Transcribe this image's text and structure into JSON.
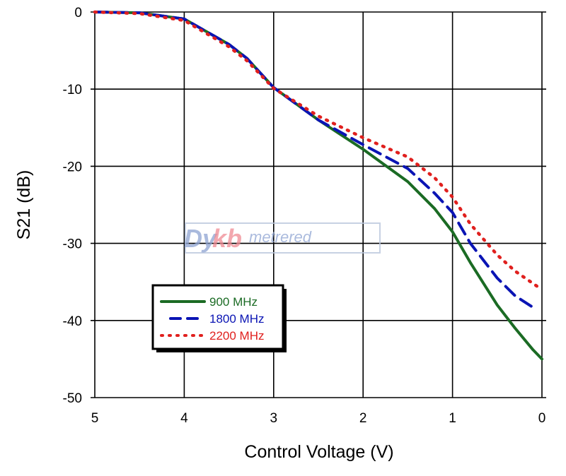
{
  "chart_data": {
    "type": "line",
    "title": "",
    "xlabel": "Control Voltage (V)",
    "ylabel": "S21 (dB)",
    "xlim": [
      5,
      0
    ],
    "ylim": [
      -50,
      0
    ],
    "x_ticks": [
      "5",
      "4",
      "3",
      "2",
      "1",
      "0"
    ],
    "y_ticks": [
      "0",
      "-10",
      "-20",
      "-30",
      "-40",
      "-50"
    ],
    "grid": true,
    "legend_position": "lower-left inside",
    "x": [
      5.0,
      4.5,
      4.0,
      3.5,
      3.3,
      3.0,
      2.5,
      2.0,
      1.5,
      1.2,
      1.0,
      0.8,
      0.5,
      0.3,
      0.1,
      0.0
    ],
    "series": [
      {
        "name": "900 MHz",
        "color": "#1b6b24",
        "style": "solid",
        "values": [
          0,
          -0.1,
          -0.9,
          -4.2,
          -6.0,
          -9.8,
          -14.0,
          -17.8,
          -22.0,
          -25.5,
          -28.5,
          -32.5,
          -38.0,
          -41.0,
          -43.8,
          -45.0
        ]
      },
      {
        "name": "1800 MHz",
        "color": "#0a14b4",
        "style": "dashed",
        "values": [
          0,
          -0.1,
          -0.9,
          -4.2,
          -6.0,
          -9.8,
          -14.0,
          -17.2,
          -20.3,
          -23.5,
          -26.0,
          -30.0,
          -34.5,
          -36.8,
          -38.3,
          null
        ]
      },
      {
        "name": "2200 MHz",
        "color": "#e0201e",
        "style": "dotted",
        "values": [
          0,
          -0.2,
          -1.1,
          -4.5,
          -6.3,
          -9.9,
          -13.5,
          -16.3,
          -18.8,
          -21.5,
          -24.0,
          -27.5,
          -31.5,
          -33.6,
          -35.2,
          -36.0
        ]
      }
    ],
    "watermark": "Dykbmetrered"
  }
}
